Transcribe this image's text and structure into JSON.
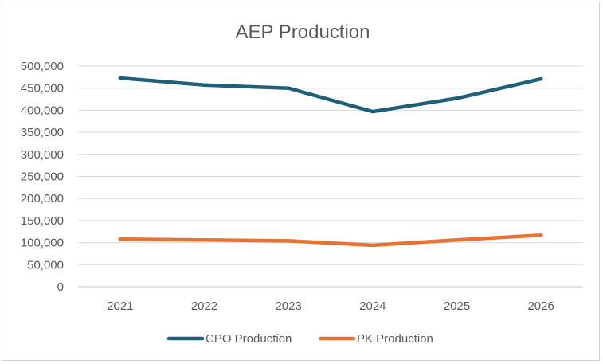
{
  "chart_data": {
    "type": "line",
    "title": "AEP Production",
    "categories": [
      "2021",
      "2022",
      "2023",
      "2024",
      "2025",
      "2026"
    ],
    "series": [
      {
        "name": "CPO Production",
        "values": [
          473000,
          457000,
          450000,
          397000,
          427000,
          471000
        ],
        "color": "#1f5f7a"
      },
      {
        "name": "PK Production",
        "values": [
          108000,
          106000,
          104000,
          94000,
          106000,
          117000
        ],
        "color": "#e97132"
      }
    ],
    "y_ticks": [
      "0",
      "50,000",
      "100,000",
      "150,000",
      "200,000",
      "250,000",
      "300,000",
      "350,000",
      "400,000",
      "450,000",
      "500,000"
    ],
    "ylim": [
      0,
      500000
    ],
    "grid": true,
    "legend_position": "bottom"
  }
}
